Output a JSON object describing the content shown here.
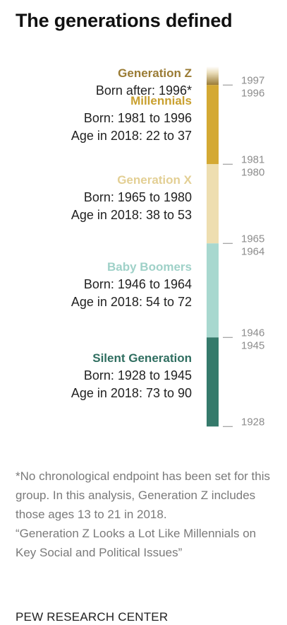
{
  "title": "The generations defined",
  "chart_data": {
    "type": "bar",
    "orientation": "vertical-timeline",
    "x_axis": "birth year",
    "y_range": [
      1928,
      2001
    ],
    "series": [
      {
        "name": "Generation Z",
        "start": 1997,
        "end": null,
        "color": "#b59a4a",
        "lines": [
          "Born after: 1996*"
        ]
      },
      {
        "name": "Millennials",
        "start": 1981,
        "end": 1996,
        "color": "#d4a933",
        "lines": [
          "Born: 1981 to 1996",
          "Age in 2018: 22 to 37"
        ]
      },
      {
        "name": "Generation X",
        "start": 1965,
        "end": 1980,
        "color": "#eedeb0",
        "lines": [
          "Born: 1965 to 1980",
          "Age in 2018: 38 to 53"
        ]
      },
      {
        "name": "Baby Boomers",
        "start": 1946,
        "end": 1964,
        "color": "#a8d8cf",
        "lines": [
          "Born: 1946 to 1964",
          "Age in 2018: 54 to 72"
        ]
      },
      {
        "name": "Silent Generation",
        "start": 1928,
        "end": 1945,
        "color": "#357a6b",
        "lines": [
          "Born: 1928 to 1945",
          "Age in 2018: 73 to 90"
        ]
      }
    ],
    "name_colors": [
      "#9a7b34",
      "#c9a02f",
      "#e3cf94",
      "#9fd1c8",
      "#2f6e60"
    ],
    "tick_labels": [
      "1997",
      "1996",
      "1981",
      "1980",
      "1965",
      "1964",
      "1946",
      "1945",
      "1928"
    ]
  },
  "footnote": "*No chronological endpoint has been set for this group. In this analysis, Generation Z includes those ages 13 to 21 in 2018.",
  "source_title": "“Generation Z Looks a Lot Like Millennials on Key Social and Political Issues”",
  "organization": "PEW RESEARCH CENTER"
}
